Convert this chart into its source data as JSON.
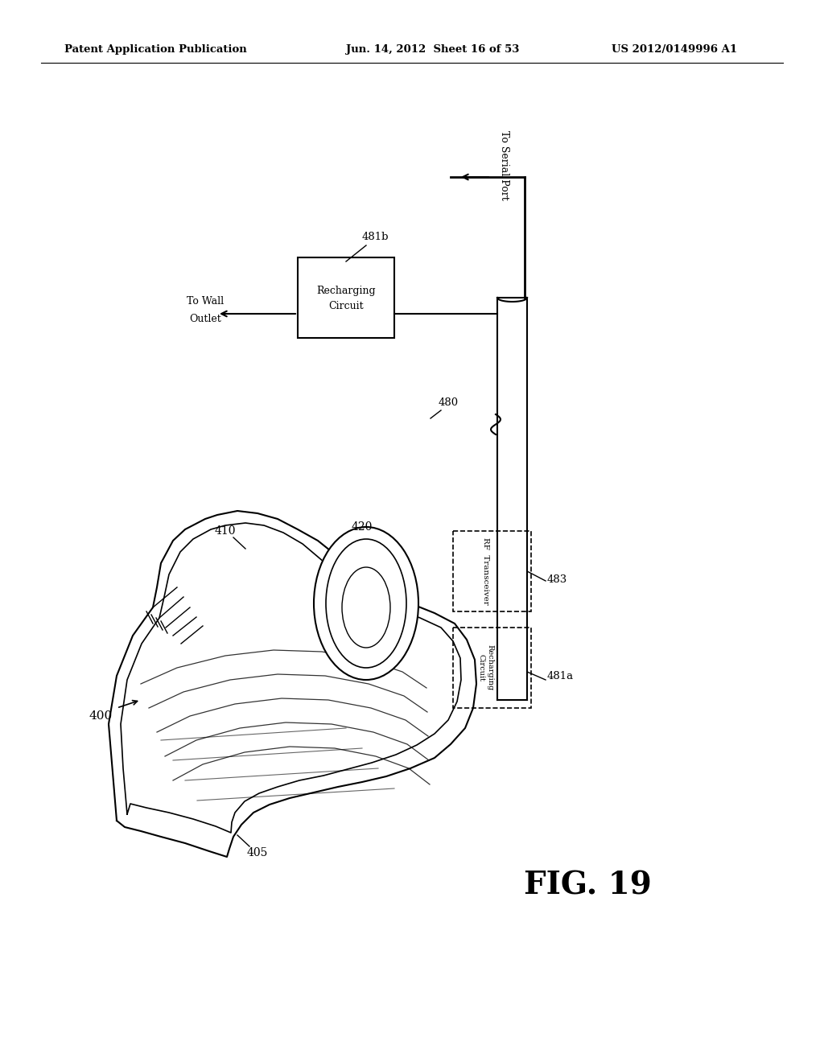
{
  "background_color": "#ffffff",
  "header_left": "Patent Application Publication",
  "header_center": "Jun. 14, 2012  Sheet 16 of 53",
  "header_right": "US 2012/0149996 A1",
  "figure_label": "FIG. 19"
}
